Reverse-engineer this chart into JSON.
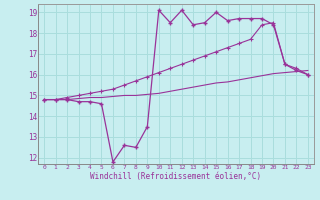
{
  "xlabel": "Windchill (Refroidissement éolien,°C)",
  "bg_color": "#c8eef0",
  "grid_color": "#aadddd",
  "line_color": "#993399",
  "x_values": [
    0,
    1,
    2,
    3,
    4,
    5,
    6,
    7,
    8,
    9,
    10,
    11,
    12,
    13,
    14,
    15,
    16,
    17,
    18,
    19,
    20,
    21,
    22,
    23
  ],
  "main_y": [
    14.8,
    14.8,
    14.8,
    14.7,
    14.7,
    14.6,
    11.8,
    12.6,
    12.5,
    13.5,
    19.1,
    18.5,
    19.1,
    18.4,
    18.5,
    19.0,
    18.6,
    18.7,
    18.7,
    18.7,
    18.4,
    16.5,
    16.2,
    16.0
  ],
  "upper_y": [
    14.8,
    14.8,
    14.9,
    15.0,
    15.1,
    15.2,
    15.3,
    15.5,
    15.7,
    15.9,
    16.1,
    16.3,
    16.5,
    16.7,
    16.9,
    17.1,
    17.3,
    17.5,
    17.7,
    18.4,
    18.5,
    16.5,
    16.3,
    16.0
  ],
  "lower_y": [
    14.8,
    14.8,
    14.8,
    14.85,
    14.9,
    14.9,
    14.95,
    15.0,
    15.0,
    15.05,
    15.1,
    15.2,
    15.3,
    15.4,
    15.5,
    15.6,
    15.65,
    15.75,
    15.85,
    15.95,
    16.05,
    16.1,
    16.15,
    16.2
  ],
  "yticks": [
    12,
    13,
    14,
    15,
    16,
    17,
    18,
    19
  ],
  "xticks": [
    0,
    1,
    2,
    3,
    4,
    5,
    6,
    7,
    8,
    9,
    10,
    11,
    12,
    13,
    14,
    15,
    16,
    17,
    18,
    19,
    20,
    21,
    22,
    23
  ],
  "xlim": [
    -0.5,
    23.5
  ],
  "ylim": [
    11.7,
    19.4
  ]
}
